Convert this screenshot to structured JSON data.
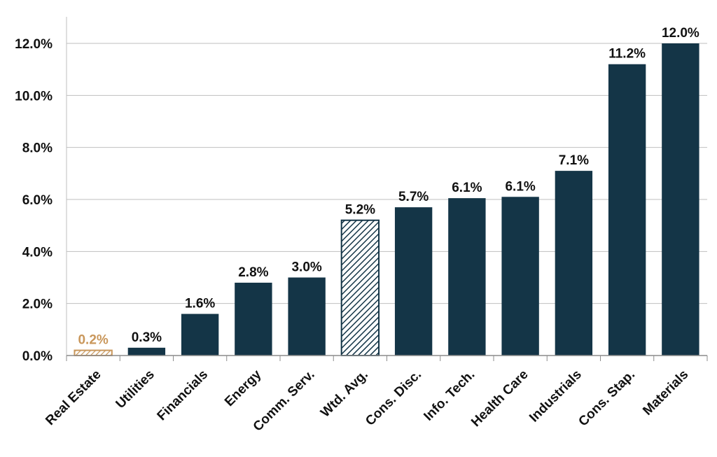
{
  "chart_data": {
    "type": "bar",
    "categories": [
      "Real Estate",
      "Utilities",
      "Financials",
      "Energy",
      "Comm. Serv.",
      "Wtd. Avg.",
      "Cons. Disc.",
      "Info. Tech.",
      "Health Care",
      "Industrials",
      "Cons. Stap.",
      "Materials"
    ],
    "values": [
      0.2,
      0.3,
      1.6,
      2.8,
      3.0,
      5.2,
      5.7,
      6.05,
      6.1,
      7.1,
      11.2,
      12.0
    ],
    "data_labels": [
      "0.2%",
      "0.3%",
      "1.6%",
      "2.8%",
      "3.0%",
      "5.2%",
      "5.7%",
      "6.1%",
      "6.1%",
      "7.1%",
      "11.2%",
      "12.0%"
    ],
    "y_ticks": [
      0,
      2,
      4,
      6,
      8,
      10,
      12
    ],
    "y_tick_labels": [
      "0.0%",
      "2.0%",
      "4.0%",
      "6.0%",
      "8.0%",
      "10.0%",
      "12.0%"
    ],
    "ylim": [
      0,
      13
    ],
    "grid": true,
    "colors": {
      "bar": "#143547",
      "highlight": "#c9975b",
      "average_hatch": "#143547",
      "grid": "#bfbfbf",
      "text": "#111111"
    },
    "bar_styles": [
      "highlight-hatched",
      "solid",
      "solid",
      "solid",
      "solid",
      "average-hatched",
      "solid",
      "solid",
      "solid",
      "solid",
      "solid",
      "solid"
    ],
    "title": "",
    "xlabel": "",
    "ylabel": ""
  }
}
